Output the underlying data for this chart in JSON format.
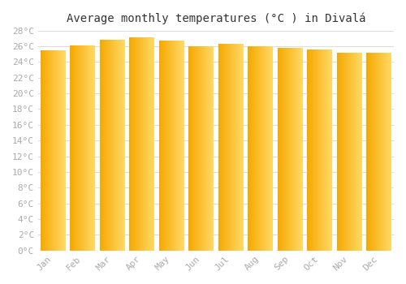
{
  "title": "Average monthly temperatures (°C ) in Divalá",
  "months": [
    "Jan",
    "Feb",
    "Mar",
    "Apr",
    "May",
    "Jun",
    "Jul",
    "Aug",
    "Sep",
    "Oct",
    "Nov",
    "Dec"
  ],
  "values": [
    25.5,
    26.1,
    26.8,
    27.1,
    26.7,
    26.0,
    26.3,
    26.0,
    25.8,
    25.6,
    25.2,
    25.2
  ],
  "bar_color_left": "#F5A800",
  "bar_color_right": "#FFD966",
  "bar_color_edge": "#E09000",
  "ylim": [
    0,
    28
  ],
  "ytick_step": 2,
  "background_color": "#ffffff",
  "grid_color": "#dddddd",
  "title_fontsize": 10,
  "tick_fontsize": 8,
  "tick_color": "#aaaaaa",
  "font_family": "monospace"
}
